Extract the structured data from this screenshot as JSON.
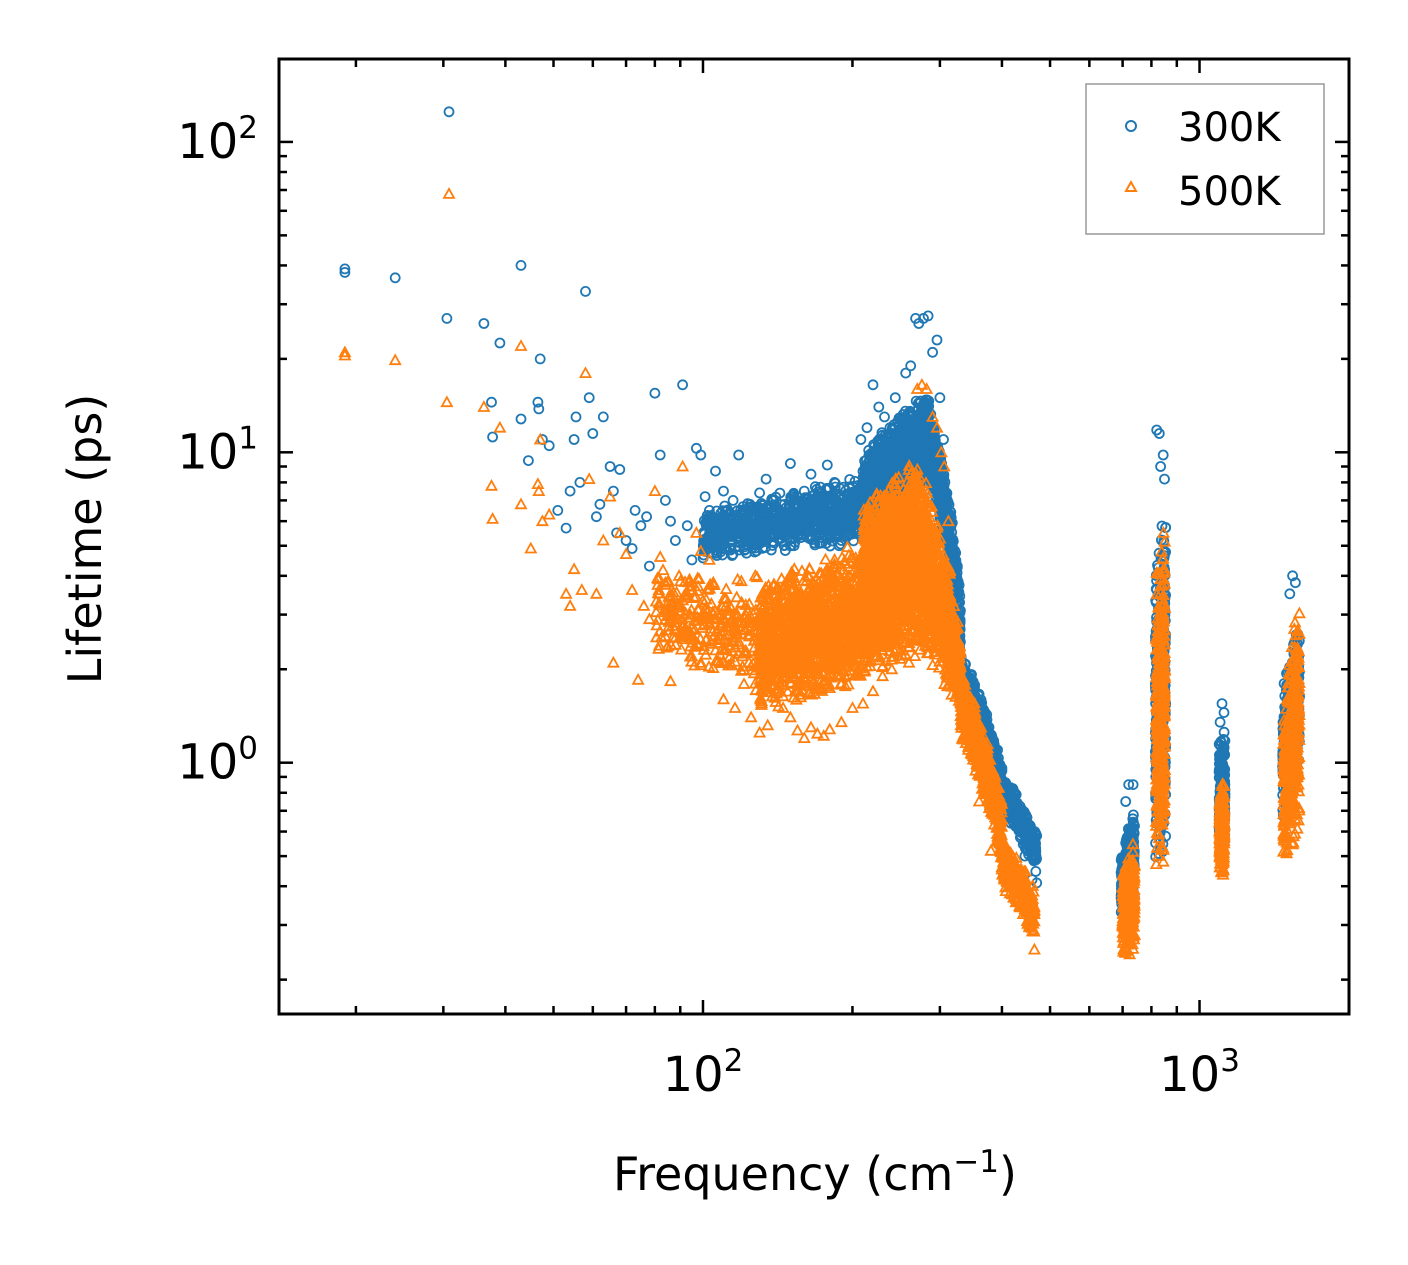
{
  "chart_data": {
    "type": "scatter",
    "xscale": "log",
    "yscale": "log",
    "xlim": [
      14,
      2000
    ],
    "ylim": [
      0.155,
      185
    ],
    "xlabel": {
      "base": "Frequency (cm",
      "sup": "−1",
      "close": ")"
    },
    "ylabel": "Lifetime (ps)",
    "xticks": [
      {
        "value": 100,
        "base": "10",
        "exp": "2"
      },
      {
        "value": 1000,
        "base": "10",
        "exp": "3"
      }
    ],
    "yticks": [
      {
        "value": 1,
        "base": "10",
        "exp": "0"
      },
      {
        "value": 10,
        "base": "10",
        "exp": "1"
      },
      {
        "value": 100,
        "base": "10",
        "exp": "2"
      }
    ],
    "legend": {
      "position": "top-right"
    },
    "series": [
      {
        "name": "300K",
        "marker": "circle",
        "color": "#1f77b4",
        "points": [
          [
            19,
            39
          ],
          [
            19,
            38
          ],
          [
            24,
            36.5
          ],
          [
            30.8,
            125
          ],
          [
            30.5,
            27
          ],
          [
            36.2,
            26
          ],
          [
            37.5,
            14.5
          ],
          [
            37.7,
            11.2
          ],
          [
            39,
            22.5
          ],
          [
            43,
            40
          ],
          [
            43,
            12.8
          ],
          [
            44.5,
            9.4
          ],
          [
            46.5,
            14.5
          ],
          [
            46.7,
            13.8
          ],
          [
            47,
            20
          ],
          [
            47.5,
            11
          ],
          [
            49,
            10.5
          ],
          [
            51,
            6.5
          ],
          [
            53,
            5.7
          ],
          [
            54,
            7.5
          ],
          [
            55,
            11
          ],
          [
            55.5,
            13
          ],
          [
            56.5,
            8
          ],
          [
            58,
            33
          ],
          [
            59,
            15
          ],
          [
            60,
            11.5
          ],
          [
            61,
            6.2
          ],
          [
            62,
            6.8
          ],
          [
            63,
            13
          ],
          [
            65,
            9
          ],
          [
            66,
            7.5
          ],
          [
            67,
            5.5
          ],
          [
            68,
            8.8
          ],
          [
            70,
            5.2
          ],
          [
            72,
            4.9
          ],
          [
            73,
            6.5
          ],
          [
            75,
            5.8
          ],
          [
            77,
            6.2
          ],
          [
            78,
            4.3
          ],
          [
            80,
            15.5
          ],
          [
            82,
            9.8
          ],
          [
            84,
            7
          ],
          [
            86,
            6
          ],
          [
            88,
            5.2
          ],
          [
            91,
            16.5
          ],
          [
            93,
            5.8
          ],
          [
            95,
            4.5
          ],
          [
            97,
            10.3
          ],
          [
            99,
            9.8
          ],
          [
            101,
            7.2
          ],
          [
            103,
            6.5
          ],
          [
            106,
            8.7
          ],
          [
            110,
            7.5
          ],
          [
            113,
            6
          ],
          [
            115,
            7
          ],
          [
            118,
            9.8
          ],
          [
            122,
            5.7
          ],
          [
            126,
            6.5
          ],
          [
            130,
            7.4
          ],
          [
            134,
            8.2
          ],
          [
            138,
            7
          ],
          [
            142,
            6.2
          ],
          [
            146,
            5.6
          ],
          [
            150,
            9.2
          ],
          [
            155,
            6.8
          ],
          [
            160,
            7.5
          ],
          [
            165,
            8.5
          ],
          [
            172,
            6.3
          ],
          [
            178,
            9.1
          ],
          [
            184,
            8
          ],
          [
            190,
            5.2
          ],
          [
            196,
            7.2
          ],
          [
            202,
            6.3
          ],
          [
            208,
            11
          ],
          [
            214,
            12
          ],
          [
            220,
            16.5
          ],
          [
            226,
            14
          ],
          [
            232,
            13
          ],
          [
            238,
            12
          ],
          [
            244,
            15
          ],
          [
            250,
            10
          ],
          [
            256,
            18
          ],
          [
            262,
            19
          ],
          [
            268,
            27
          ],
          [
            272,
            26
          ],
          [
            278,
            27
          ],
          [
            284,
            27.5
          ],
          [
            290,
            21
          ],
          [
            296,
            23
          ],
          [
            300,
            15
          ],
          [
            305,
            11
          ],
          [
            310,
            6.5
          ],
          [
            318,
            4
          ],
          [
            326,
            2.8
          ],
          [
            340,
            1.9
          ],
          [
            355,
            1.6
          ],
          [
            370,
            1.3
          ],
          [
            380,
            1.1
          ],
          [
            390,
            1.0
          ],
          [
            400,
            0.96
          ],
          [
            415,
            0.78
          ],
          [
            430,
            0.62
          ],
          [
            445,
            0.5
          ],
          [
            460,
            0.42
          ],
          [
            470,
            0.41
          ],
          [
            700,
            0.45
          ],
          [
            710,
            0.75
          ],
          [
            720,
            0.85
          ],
          [
            730,
            0.55
          ],
          [
            735,
            0.85
          ],
          [
            820,
            11.8
          ],
          [
            830,
            11.5
          ],
          [
            835,
            9
          ],
          [
            845,
            9.8
          ],
          [
            850,
            8.2
          ],
          [
            1100,
            1.35
          ],
          [
            1110,
            1.55
          ],
          [
            1120,
            1.45
          ],
          [
            1480,
            1.8
          ],
          [
            1520,
            3.5
          ],
          [
            1540,
            4
          ],
          [
            1560,
            3.8
          ],
          [
            1580,
            2
          ]
        ],
        "bands": [
          {
            "x": [
              100,
              210
            ],
            "lo": [
              4.5,
              5
            ],
            "hi": [
              6.5,
              8.5
            ],
            "n": 900
          },
          {
            "x": [
              210,
              285
            ],
            "lo": [
              5,
              8
            ],
            "hi": [
              10,
              16
            ],
            "n": 1500
          },
          {
            "x": [
              285,
              330
            ],
            "lo": [
              8,
              1.8
            ],
            "hi": [
              14,
              3.5
            ],
            "n": 500
          },
          {
            "x": [
              330,
              400
            ],
            "lo": [
              1.5,
              0.7
            ],
            "hi": [
              2.3,
              1.0
            ],
            "n": 500
          },
          {
            "x": [
              400,
              470
            ],
            "lo": [
              0.7,
              0.42
            ],
            "hi": [
              0.95,
              0.6
            ],
            "n": 300
          },
          {
            "x": [
              695,
              740
            ],
            "lo": [
              0.3,
              0.35
            ],
            "hi": [
              0.5,
              0.8
            ],
            "n": 300
          },
          {
            "x": [
              815,
              855
            ],
            "lo": [
              0.45,
              0.5
            ],
            "hi": [
              4.5,
              7
            ],
            "n": 400
          },
          {
            "x": [
              1095,
              1125
            ],
            "lo": [
              0.5,
              0.5
            ],
            "hi": [
              1.2,
              1.3
            ],
            "n": 250
          },
          {
            "x": [
              1470,
              1590
            ],
            "lo": [
              0.6,
              0.9
            ],
            "hi": [
              1.6,
              3.3
            ],
            "n": 400
          }
        ]
      },
      {
        "name": "500K",
        "marker": "triangle",
        "color": "#ff7f0e",
        "points": [
          [
            19,
            21
          ],
          [
            19,
            20.5
          ],
          [
            24,
            19.8
          ],
          [
            30.8,
            68
          ],
          [
            30.5,
            14.5
          ],
          [
            36.2,
            14
          ],
          [
            37.5,
            7.8
          ],
          [
            37.7,
            6.1
          ],
          [
            39,
            12
          ],
          [
            43,
            22
          ],
          [
            43,
            6.8
          ],
          [
            45,
            4.9
          ],
          [
            46.5,
            7.9
          ],
          [
            46.7,
            7.5
          ],
          [
            47,
            11
          ],
          [
            47.5,
            6
          ],
          [
            49,
            6.3
          ],
          [
            53,
            3.5
          ],
          [
            54,
            3.2
          ],
          [
            55,
            4.2
          ],
          [
            57,
            3.6
          ],
          [
            58,
            18
          ],
          [
            59,
            8.2
          ],
          [
            61,
            3.5
          ],
          [
            63,
            5.2
          ],
          [
            65,
            7.2
          ],
          [
            66,
            2.1
          ],
          [
            68,
            5.5
          ],
          [
            70,
            4.7
          ],
          [
            72,
            3.6
          ],
          [
            74,
            1.85
          ],
          [
            76,
            3.2
          ],
          [
            78,
            2.9
          ],
          [
            80,
            7.5
          ],
          [
            82,
            4.6
          ],
          [
            84,
            3.8
          ],
          [
            86,
            1.83
          ],
          [
            88,
            3.2
          ],
          [
            91,
            9
          ],
          [
            93,
            3.4
          ],
          [
            95,
            2.2
          ],
          [
            97,
            5.5
          ],
          [
            99,
            4.8
          ],
          [
            101,
            3
          ],
          [
            103,
            4.5
          ],
          [
            106,
            2.3
          ],
          [
            110,
            1.6
          ],
          [
            113,
            3
          ],
          [
            116,
            1.5
          ],
          [
            120,
            2.2
          ],
          [
            125,
            1.4
          ],
          [
            130,
            1.25
          ],
          [
            135,
            1.32
          ],
          [
            140,
            2
          ],
          [
            145,
            1.5
          ],
          [
            150,
            1.4
          ],
          [
            155,
            1.27
          ],
          [
            160,
            1.2
          ],
          [
            165,
            1.3
          ],
          [
            170,
            1.24
          ],
          [
            175,
            1.22
          ],
          [
            180,
            1.28
          ],
          [
            190,
            1.35
          ],
          [
            200,
            1.5
          ],
          [
            210,
            1.55
          ],
          [
            220,
            1.7
          ],
          [
            230,
            1.9
          ],
          [
            240,
            2
          ],
          [
            250,
            2.3
          ],
          [
            260,
            2.1
          ],
          [
            270,
            16
          ],
          [
            276,
            16.5
          ],
          [
            282,
            16
          ],
          [
            290,
            13
          ],
          [
            296,
            12
          ],
          [
            302,
            10
          ],
          [
            306,
            9
          ],
          [
            312,
            6
          ],
          [
            345,
            1.2
          ],
          [
            360,
            0.75
          ],
          [
            380,
            0.52
          ],
          [
            400,
            0.46
          ],
          [
            420,
            0.42
          ],
          [
            440,
            0.35
          ],
          [
            455,
            0.3
          ],
          [
            465,
            0.25
          ]
        ],
        "bands": [
          {
            "x": [
              80,
              130
            ],
            "lo": [
              2.2,
              1.6
            ],
            "hi": [
              4.5,
              4.0
            ],
            "n": 300
          },
          {
            "x": [
              130,
              210
            ],
            "lo": [
              1.45,
              1.7
            ],
            "hi": [
              3.8,
              5.2
            ],
            "n": 1400
          },
          {
            "x": [
              210,
              275
            ],
            "lo": [
              1.9,
              2.2
            ],
            "hi": [
              7,
              10
            ],
            "n": 1600
          },
          {
            "x": [
              275,
              330
            ],
            "lo": [
              2.1,
              1.5
            ],
            "hi": [
              9,
              2.6
            ],
            "n": 700
          },
          {
            "x": [
              330,
              400
            ],
            "lo": [
              1.2,
              0.45
            ],
            "hi": [
              2,
              0.75
            ],
            "n": 600
          },
          {
            "x": [
              400,
              465
            ],
            "lo": [
              0.4,
              0.27
            ],
            "hi": [
              0.58,
              0.4
            ],
            "n": 300
          },
          {
            "x": [
              700,
              740
            ],
            "lo": [
              0.23,
              0.23
            ],
            "hi": [
              0.45,
              0.6
            ],
            "n": 300
          },
          {
            "x": [
              818,
              852
            ],
            "lo": [
              0.42,
              0.45
            ],
            "hi": [
              4.5,
              5.8
            ],
            "n": 400
          },
          {
            "x": [
              1098,
              1122
            ],
            "lo": [
              0.42,
              0.42
            ],
            "hi": [
              0.8,
              0.95
            ],
            "n": 250
          },
          {
            "x": [
              1475,
              1590
            ],
            "lo": [
              0.42,
              0.6
            ],
            "hi": [
              1.4,
              3.6
            ],
            "n": 400
          }
        ]
      }
    ]
  }
}
